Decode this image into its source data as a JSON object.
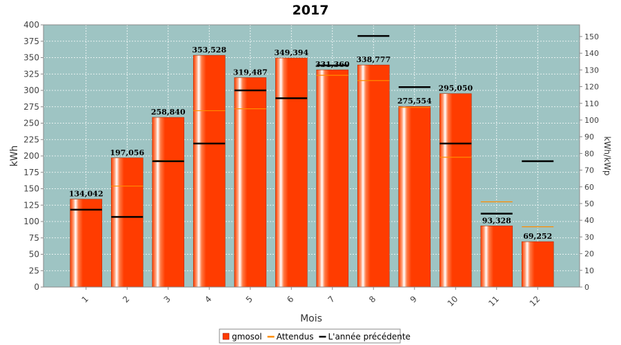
{
  "chart_data": {
    "type": "bar",
    "title": "2017",
    "xlabel": "Mois",
    "ylabel": "kWh",
    "ylabel_right": "kWh/kWp",
    "categories": [
      "1",
      "2",
      "3",
      "4",
      "5",
      "6",
      "7",
      "8",
      "9",
      "10",
      "11",
      "12"
    ],
    "ylim": [
      0,
      400
    ],
    "ylim_right": [
      0,
      157
    ],
    "y_ticks": [
      0,
      25,
      50,
      75,
      100,
      125,
      150,
      175,
      200,
      225,
      250,
      275,
      300,
      325,
      350,
      375,
      400
    ],
    "y_ticks_right": [
      0,
      10,
      20,
      30,
      40,
      50,
      60,
      70,
      80,
      90,
      100,
      110,
      120,
      130,
      140,
      150
    ],
    "grid": true,
    "legend_position": "bottom",
    "series": [
      {
        "name": "gmosol",
        "kind": "bar",
        "color": "#ff3c00",
        "values": [
          134.042,
          197.056,
          258.84,
          353.528,
          319.487,
          349.394,
          331.36,
          338.777,
          275.554,
          295.05,
          93.328,
          69.252
        ],
        "labels": [
          "134,042",
          "197,056",
          "258,840",
          "353,528",
          "319,487",
          "349,394",
          "331,360",
          "338,777",
          "275,554",
          "295,050",
          "93,328",
          "69,252"
        ]
      },
      {
        "name": "Attendus",
        "kind": "marker",
        "color": "#ff8c00",
        "values": [
          118,
          154,
          193,
          269,
          272,
          288,
          323,
          315,
          274,
          198,
          130,
          92
        ]
      },
      {
        "name": "L'année précédente",
        "kind": "marker",
        "color": "#000000",
        "values": [
          118,
          107,
          192,
          219,
          300,
          288,
          338,
          383,
          305,
          219,
          112,
          192
        ]
      }
    ]
  }
}
